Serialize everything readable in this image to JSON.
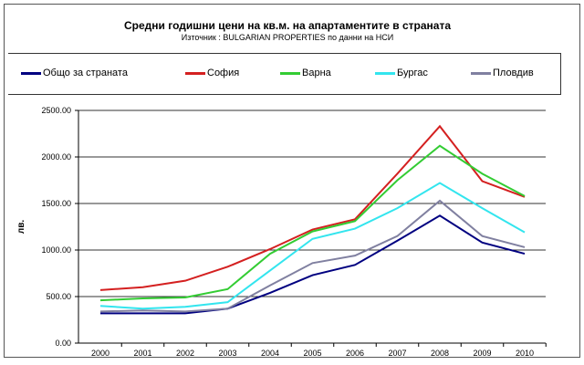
{
  "chart_data": {
    "type": "line",
    "title": "Средни годишни цени на кв.м. на апартаментите в страната",
    "subtitle": "Източник : BULGARIAN PROPERTIES по данни на НСИ",
    "xlabel": "",
    "ylabel": "лв.",
    "ylim": [
      0,
      2500
    ],
    "yticks": [
      "0.00",
      "500.00",
      "1000.00",
      "1500.00",
      "2000.00",
      "2500.00"
    ],
    "categories": [
      "2000",
      "2001",
      "2002",
      "2003",
      "2004",
      "2005",
      "2006",
      "2007",
      "2008",
      "2009",
      "2010"
    ],
    "grid": true,
    "legend": "top",
    "series": [
      {
        "name": "Общо за страната",
        "color": "#000080",
        "values": [
          320,
          320,
          320,
          370,
          540,
          730,
          840,
          1100,
          1370,
          1080,
          960
        ]
      },
      {
        "name": "София",
        "color": "#d42020",
        "values": [
          570,
          600,
          670,
          820,
          1010,
          1220,
          1330,
          1820,
          2330,
          1740,
          1570
        ]
      },
      {
        "name": "Варна",
        "color": "#33cc33",
        "values": [
          460,
          480,
          490,
          580,
          960,
          1200,
          1310,
          1750,
          2120,
          1820,
          1580
        ]
      },
      {
        "name": "Бургас",
        "color": "#33e5ee",
        "values": [
          400,
          370,
          390,
          440,
          780,
          1120,
          1230,
          1450,
          1720,
          1450,
          1190
        ]
      },
      {
        "name": "Пловдив",
        "color": "#8080a0",
        "values": [
          340,
          350,
          340,
          370,
          620,
          860,
          940,
          1150,
          1530,
          1150,
          1030
        ]
      }
    ]
  }
}
